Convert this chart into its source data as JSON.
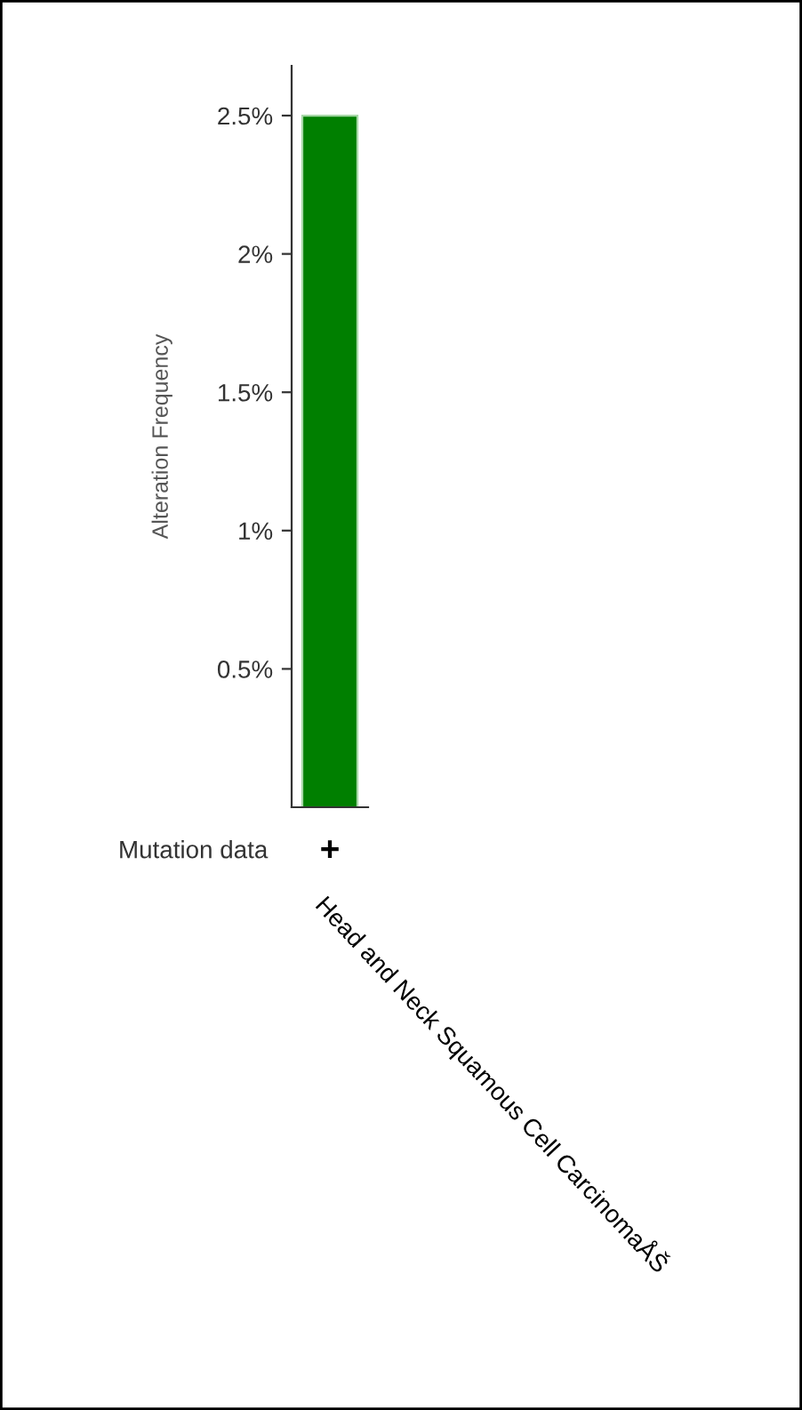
{
  "chart_data": {
    "type": "bar",
    "ylabel": "Alteration Frequency",
    "categories": [
      "Head and Neck Squamous Cell CarcinomaÅŠ"
    ],
    "values": [
      2.5
    ],
    "color": "#007f00",
    "ylim": [
      0,
      2.68
    ],
    "yticks": [
      {
        "value": 0.5,
        "label": "0.5%"
      },
      {
        "value": 1,
        "label": "1%"
      },
      {
        "value": 1.5,
        "label": "1.5%"
      },
      {
        "value": 2,
        "label": "2%"
      },
      {
        "value": 2.5,
        "label": "2.5%"
      }
    ],
    "grid": false,
    "legend": false,
    "annotations": [
      "Mutation data",
      "+"
    ]
  }
}
